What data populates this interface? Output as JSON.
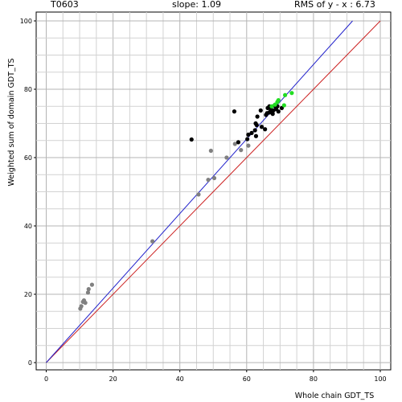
{
  "header": {
    "target": "T0603",
    "slope": "slope: 1.09",
    "rms": "RMS of  y - x : 6.73"
  },
  "chart_data": {
    "type": "scatter",
    "title": "",
    "xlabel": "Whole chain GDT_TS",
    "ylabel": "Weighted sum of domain GDT_TS",
    "xlim": [
      0,
      100
    ],
    "ylim": [
      0,
      100
    ],
    "x_ticks": [
      "0",
      "20",
      "40",
      "60",
      "80",
      "100"
    ],
    "y_ticks": [
      "0",
      "20",
      "40",
      "60",
      "80",
      "100"
    ],
    "grid": true,
    "lines": [
      {
        "name": "y = x",
        "color": "#cc2222",
        "points": [
          [
            0,
            0
          ],
          [
            100,
            100
          ]
        ]
      },
      {
        "name": "fit",
        "color": "#2222cc",
        "points": [
          [
            0,
            0
          ],
          [
            91.7,
            100
          ]
        ]
      }
    ],
    "series": [
      {
        "color": "#808080",
        "points": [
          [
            10.2,
            15.8
          ],
          [
            10.5,
            16.5
          ],
          [
            11,
            17.8
          ],
          [
            11.3,
            18.2
          ],
          [
            11.7,
            17.5
          ],
          [
            12.5,
            20.5
          ],
          [
            12.7,
            21.5
          ],
          [
            13.7,
            22.8
          ],
          [
            31.8,
            35.5
          ],
          [
            45.6,
            49.2
          ],
          [
            48.5,
            53.5
          ],
          [
            49.3,
            62
          ],
          [
            50.3,
            54
          ],
          [
            54,
            60
          ],
          [
            56.5,
            64
          ],
          [
            58.3,
            62.2
          ],
          [
            60.5,
            63.5
          ]
        ]
      },
      {
        "color": "#000000",
        "points": [
          [
            43.5,
            65.3
          ],
          [
            56.3,
            73.5
          ],
          [
            57.5,
            64.5
          ],
          [
            60.2,
            65.4
          ],
          [
            60.5,
            66.7
          ],
          [
            61.5,
            67.2
          ],
          [
            62.5,
            68
          ],
          [
            63,
            69.5
          ],
          [
            62.7,
            70
          ],
          [
            62.8,
            66.3
          ],
          [
            63.2,
            72
          ],
          [
            64.2,
            73.8
          ],
          [
            64.5,
            69
          ],
          [
            65.5,
            68.3
          ],
          [
            65.8,
            72.5
          ],
          [
            66.1,
            73
          ],
          [
            66.3,
            74.5
          ],
          [
            66.8,
            75
          ],
          [
            67.1,
            73.5
          ],
          [
            67.3,
            74
          ],
          [
            67.8,
            72.8
          ],
          [
            68,
            73.8
          ],
          [
            68.3,
            75.2
          ],
          [
            68.8,
            74.2
          ],
          [
            69.2,
            75
          ],
          [
            69.5,
            73.5
          ],
          [
            70.5,
            74.5
          ],
          [
            66.8,
            73.2
          ]
        ]
      },
      {
        "color": "#22dd22",
        "points": [
          [
            67.5,
            75
          ],
          [
            68.5,
            75.5
          ],
          [
            69.2,
            76.3
          ],
          [
            69.5,
            76.8
          ],
          [
            71.2,
            75.3
          ],
          [
            71.5,
            78.3
          ],
          [
            73.5,
            78.9
          ]
        ]
      }
    ]
  }
}
